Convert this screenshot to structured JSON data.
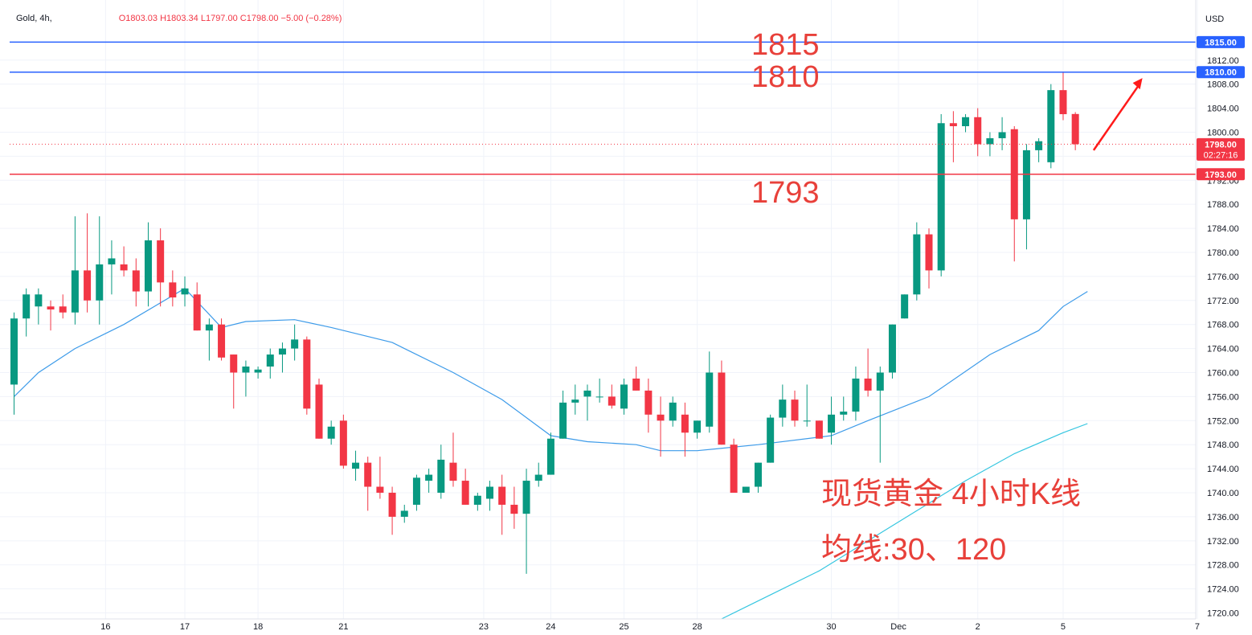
{
  "legend": {
    "symbol": "Gold, 4h,",
    "ohlc": "O1803.03 H1803.34 L1797.00 C1798.00 −5.00 (−0.28%)"
  },
  "currency": "USD",
  "annotations": {
    "level_1815": "1815",
    "level_1810": "1810",
    "level_1793": "1793",
    "title_line": "现货黄金 4小时K线",
    "ma_line": "均线:30、120"
  },
  "price_tags": {
    "line_1815": "1815.00",
    "line_1810": "1810.00",
    "last_price": "1798.00",
    "countdown": "02:27:16",
    "line_1793": "1793.00"
  },
  "colors": {
    "up": "#089981",
    "down": "#f23645",
    "blue_line": "#2962ff",
    "red_line": "#f23645",
    "ma_short": "#3d9be9",
    "ma_long": "#35c6e0",
    "annotation": "#e8403a"
  },
  "chart_data": {
    "type": "candlestick",
    "instrument": "Gold",
    "timeframe": "4h",
    "ylim": [
      1719,
      1822
    ],
    "y_ticks": [
      1720,
      1724,
      1728,
      1732,
      1736,
      1740,
      1744,
      1748,
      1752,
      1756,
      1760,
      1764,
      1768,
      1772,
      1776,
      1780,
      1784,
      1788,
      1792,
      1796,
      1800,
      1804,
      1808,
      1812
    ],
    "x_ticks": [
      {
        "label": "16",
        "index": 7.5
      },
      {
        "label": "17",
        "index": 14
      },
      {
        "label": "18",
        "index": 20
      },
      {
        "label": "21",
        "index": 27
      },
      {
        "label": "23",
        "index": 38.5
      },
      {
        "label": "24",
        "index": 44
      },
      {
        "label": "25",
        "index": 50
      },
      {
        "label": "28",
        "index": 56
      },
      {
        "label": "30",
        "index": 67
      },
      {
        "label": "Dec",
        "index": 72.5
      },
      {
        "label": "2",
        "index": 79
      },
      {
        "label": "5",
        "index": 86
      },
      {
        "label": "7",
        "index": 97
      }
    ],
    "candles": [
      {
        "o": 1758,
        "h": 1770,
        "l": 1753,
        "c": 1769
      },
      {
        "o": 1769,
        "h": 1774,
        "l": 1766,
        "c": 1773
      },
      {
        "o": 1771,
        "h": 1774,
        "l": 1768,
        "c": 1773
      },
      {
        "o": 1771,
        "h": 1772,
        "l": 1767,
        "c": 1770.5
      },
      {
        "o": 1771,
        "h": 1773,
        "l": 1769,
        "c": 1770
      },
      {
        "o": 1770,
        "h": 1786,
        "l": 1768,
        "c": 1777
      },
      {
        "o": 1777,
        "h": 1786.5,
        "l": 1770,
        "c": 1772
      },
      {
        "o": 1772,
        "h": 1786,
        "l": 1768,
        "c": 1778
      },
      {
        "o": 1778,
        "h": 1782,
        "l": 1773,
        "c": 1779
      },
      {
        "o": 1778,
        "h": 1781,
        "l": 1776,
        "c": 1777
      },
      {
        "o": 1777,
        "h": 1779,
        "l": 1771,
        "c": 1773.5
      },
      {
        "o": 1773.5,
        "h": 1785,
        "l": 1771,
        "c": 1782
      },
      {
        "o": 1782,
        "h": 1784,
        "l": 1771,
        "c": 1775
      },
      {
        "o": 1775,
        "h": 1777,
        "l": 1771,
        "c": 1772.5
      },
      {
        "o": 1773,
        "h": 1776,
        "l": 1771,
        "c": 1774
      },
      {
        "o": 1773,
        "h": 1775,
        "l": 1767,
        "c": 1767
      },
      {
        "o": 1767,
        "h": 1769,
        "l": 1762,
        "c": 1768
      },
      {
        "o": 1768,
        "h": 1769,
        "l": 1762,
        "c": 1762.5
      },
      {
        "o": 1763,
        "h": 1763,
        "l": 1754,
        "c": 1760
      },
      {
        "o": 1760,
        "h": 1762,
        "l": 1756,
        "c": 1761
      },
      {
        "o": 1760,
        "h": 1761,
        "l": 1759,
        "c": 1760.5
      },
      {
        "o": 1761,
        "h": 1764,
        "l": 1759,
        "c": 1763
      },
      {
        "o": 1763,
        "h": 1765,
        "l": 1760,
        "c": 1764
      },
      {
        "o": 1764,
        "h": 1768,
        "l": 1762,
        "c": 1765.5
      },
      {
        "o": 1765.5,
        "h": 1766,
        "l": 1753,
        "c": 1754
      },
      {
        "o": 1758,
        "h": 1759,
        "l": 1749,
        "c": 1749
      },
      {
        "o": 1749,
        "h": 1752,
        "l": 1748,
        "c": 1751
      },
      {
        "o": 1752,
        "h": 1753,
        "l": 1744,
        "c": 1744.5
      },
      {
        "o": 1744,
        "h": 1747,
        "l": 1742,
        "c": 1745
      },
      {
        "o": 1745,
        "h": 1746,
        "l": 1737,
        "c": 1741
      },
      {
        "o": 1741,
        "h": 1746,
        "l": 1739,
        "c": 1740
      },
      {
        "o": 1740,
        "h": 1741,
        "l": 1733,
        "c": 1736
      },
      {
        "o": 1736,
        "h": 1738,
        "l": 1735,
        "c": 1737
      },
      {
        "o": 1738,
        "h": 1743,
        "l": 1737,
        "c": 1742.5
      },
      {
        "o": 1742,
        "h": 1744,
        "l": 1740,
        "c": 1743
      },
      {
        "o": 1740,
        "h": 1748,
        "l": 1739,
        "c": 1745.5
      },
      {
        "o": 1745,
        "h": 1750,
        "l": 1741,
        "c": 1742
      },
      {
        "o": 1742,
        "h": 1744,
        "l": 1738,
        "c": 1738
      },
      {
        "o": 1738,
        "h": 1740,
        "l": 1737,
        "c": 1739.5
      },
      {
        "o": 1739,
        "h": 1742,
        "l": 1737,
        "c": 1741
      },
      {
        "o": 1741,
        "h": 1743,
        "l": 1733,
        "c": 1738
      },
      {
        "o": 1738,
        "h": 1741,
        "l": 1734,
        "c": 1736.5
      },
      {
        "o": 1736.5,
        "h": 1744,
        "l": 1726.5,
        "c": 1742
      },
      {
        "o": 1742,
        "h": 1745,
        "l": 1741,
        "c": 1743
      },
      {
        "o": 1743,
        "h": 1750,
        "l": 1743,
        "c": 1749
      },
      {
        "o": 1749,
        "h": 1757,
        "l": 1749,
        "c": 1755
      },
      {
        "o": 1755,
        "h": 1758,
        "l": 1753,
        "c": 1755.5
      },
      {
        "o": 1756,
        "h": 1758,
        "l": 1752,
        "c": 1757
      },
      {
        "o": 1756,
        "h": 1759,
        "l": 1755,
        "c": 1756
      },
      {
        "o": 1756,
        "h": 1758,
        "l": 1754,
        "c": 1754.5
      },
      {
        "o": 1754,
        "h": 1759,
        "l": 1753,
        "c": 1758
      },
      {
        "o": 1759,
        "h": 1761,
        "l": 1757,
        "c": 1757
      },
      {
        "o": 1757,
        "h": 1759,
        "l": 1750,
        "c": 1753
      },
      {
        "o": 1753,
        "h": 1756,
        "l": 1746,
        "c": 1752
      },
      {
        "o": 1752,
        "h": 1756,
        "l": 1751,
        "c": 1755
      },
      {
        "o": 1753,
        "h": 1755,
        "l": 1746,
        "c": 1750
      },
      {
        "o": 1750,
        "h": 1752,
        "l": 1749,
        "c": 1752
      },
      {
        "o": 1751,
        "h": 1763.5,
        "l": 1750,
        "c": 1760
      },
      {
        "o": 1760,
        "h": 1762,
        "l": 1748,
        "c": 1748
      },
      {
        "o": 1748,
        "h": 1749,
        "l": 1740,
        "c": 1740
      },
      {
        "o": 1740,
        "h": 1741,
        "l": 1740,
        "c": 1741
      },
      {
        "o": 1741,
        "h": 1745,
        "l": 1740,
        "c": 1745
      },
      {
        "o": 1745,
        "h": 1753,
        "l": 1745,
        "c": 1752.5
      },
      {
        "o": 1752.5,
        "h": 1758,
        "l": 1751,
        "c": 1755.5
      },
      {
        "o": 1755.5,
        "h": 1757,
        "l": 1751,
        "c": 1752
      },
      {
        "o": 1752,
        "h": 1758,
        "l": 1751,
        "c": 1752
      },
      {
        "o": 1752,
        "h": 1752,
        "l": 1749,
        "c": 1749
      },
      {
        "o": 1750,
        "h": 1756,
        "l": 1748,
        "c": 1753
      },
      {
        "o": 1753,
        "h": 1756,
        "l": 1752,
        "c": 1753.5
      },
      {
        "o": 1753.5,
        "h": 1761,
        "l": 1752,
        "c": 1759
      },
      {
        "o": 1759,
        "h": 1764,
        "l": 1756,
        "c": 1757
      },
      {
        "o": 1757,
        "h": 1761,
        "l": 1745,
        "c": 1760
      },
      {
        "o": 1760,
        "h": 1768,
        "l": 1759,
        "c": 1768
      },
      {
        "o": 1769,
        "h": 1773,
        "l": 1769,
        "c": 1773
      },
      {
        "o": 1773,
        "h": 1785,
        "l": 1772,
        "c": 1783
      },
      {
        "o": 1783,
        "h": 1784,
        "l": 1774,
        "c": 1777
      },
      {
        "o": 1777,
        "h": 1803,
        "l": 1776,
        "c": 1801.5
      },
      {
        "o": 1801.5,
        "h": 1803.5,
        "l": 1795,
        "c": 1801
      },
      {
        "o": 1801,
        "h": 1803,
        "l": 1800,
        "c": 1802.5
      },
      {
        "o": 1802.5,
        "h": 1804,
        "l": 1796,
        "c": 1798
      },
      {
        "o": 1798,
        "h": 1800,
        "l": 1796,
        "c": 1799
      },
      {
        "o": 1799,
        "h": 1802.5,
        "l": 1797,
        "c": 1800
      },
      {
        "o": 1800.5,
        "h": 1801,
        "l": 1778.5,
        "c": 1785.5
      },
      {
        "o": 1785.5,
        "h": 1798,
        "l": 1780.5,
        "c": 1797
      },
      {
        "o": 1797,
        "h": 1799,
        "l": 1795,
        "c": 1798.5
      },
      {
        "o": 1795,
        "h": 1808,
        "l": 1794,
        "c": 1807
      },
      {
        "o": 1807,
        "h": 1810,
        "l": 1802,
        "c": 1803
      },
      {
        "o": 1803.03,
        "h": 1803.34,
        "l": 1797,
        "c": 1798
      }
    ],
    "ma30": [
      [
        0,
        1756
      ],
      [
        2,
        1760
      ],
      [
        5,
        1764
      ],
      [
        9,
        1768
      ],
      [
        14,
        1774
      ],
      [
        17,
        1767.5
      ],
      [
        19,
        1768.5
      ],
      [
        23,
        1768.8
      ],
      [
        26,
        1767.5
      ],
      [
        31,
        1765
      ],
      [
        36,
        1760
      ],
      [
        40,
        1755.5
      ],
      [
        44,
        1749.5
      ],
      [
        47,
        1748.5
      ],
      [
        51,
        1748
      ],
      [
        53,
        1747
      ],
      [
        56,
        1747
      ],
      [
        61,
        1748
      ],
      [
        67,
        1749.5
      ],
      [
        70,
        1752
      ],
      [
        75,
        1756
      ],
      [
        80,
        1763
      ],
      [
        84,
        1767
      ],
      [
        86,
        1771
      ],
      [
        88,
        1773.5
      ]
    ],
    "ma120": [
      [
        58,
        1719
      ],
      [
        62,
        1723
      ],
      [
        66,
        1727
      ],
      [
        70,
        1732
      ],
      [
        74,
        1737
      ],
      [
        78,
        1742
      ],
      [
        82,
        1746.5
      ],
      [
        86,
        1750
      ],
      [
        88,
        1751.5
      ]
    ],
    "horizontal_lines": [
      {
        "price": 1815,
        "color": "blue"
      },
      {
        "price": 1810,
        "color": "blue"
      },
      {
        "price": 1793,
        "color": "red"
      }
    ],
    "last_price": 1798,
    "projection_arrow": {
      "from_index": 88.5,
      "from_price": 1797,
      "to_index": 92.5,
      "to_price": 1809
    }
  }
}
